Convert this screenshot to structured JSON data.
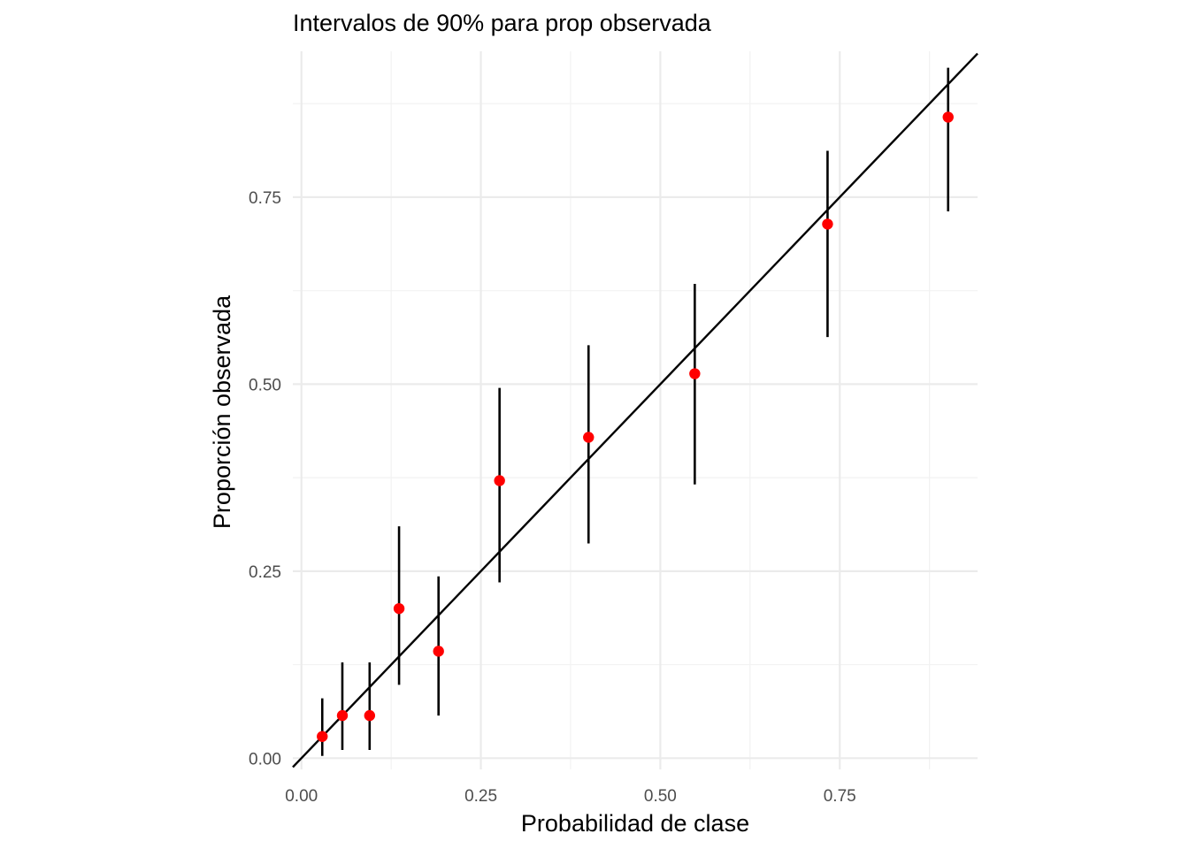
{
  "chart_data": {
    "type": "scatter",
    "title": "Intervalos de 90% para prop observada",
    "xlabel": "Probabilidad de clase",
    "ylabel": "Proporción observada",
    "xlim": [
      -0.012,
      0.942
    ],
    "ylim": [
      -0.015,
      0.945
    ],
    "x_ticks": [
      {
        "value": 0.0,
        "label": "0.00"
      },
      {
        "value": 0.25,
        "label": "0.25"
      },
      {
        "value": 0.5,
        "label": "0.50"
      },
      {
        "value": 0.75,
        "label": "0.75"
      }
    ],
    "y_ticks": [
      {
        "value": 0.0,
        "label": "0.00"
      },
      {
        "value": 0.25,
        "label": "0.25"
      },
      {
        "value": 0.5,
        "label": "0.50"
      },
      {
        "value": 0.75,
        "label": "0.75"
      }
    ],
    "x_minor": [
      0.125,
      0.375,
      0.625,
      0.875
    ],
    "y_minor": [
      0.125,
      0.375,
      0.625,
      0.875
    ],
    "grid": true,
    "reference_line": {
      "intercept": 0,
      "slope": 1
    },
    "point_color": "#ff0000",
    "bar_color": "#000000",
    "points": [
      {
        "x": 0.029,
        "y": 0.029,
        "lower": 0.003,
        "upper": 0.08
      },
      {
        "x": 0.057,
        "y": 0.057,
        "lower": 0.011,
        "upper": 0.128
      },
      {
        "x": 0.095,
        "y": 0.057,
        "lower": 0.011,
        "upper": 0.128
      },
      {
        "x": 0.136,
        "y": 0.2,
        "lower": 0.098,
        "upper": 0.31
      },
      {
        "x": 0.191,
        "y": 0.143,
        "lower": 0.057,
        "upper": 0.243
      },
      {
        "x": 0.276,
        "y": 0.371,
        "lower": 0.235,
        "upper": 0.495
      },
      {
        "x": 0.4,
        "y": 0.429,
        "lower": 0.287,
        "upper": 0.552
      },
      {
        "x": 0.548,
        "y": 0.514,
        "lower": 0.366,
        "upper": 0.634
      },
      {
        "x": 0.733,
        "y": 0.714,
        "lower": 0.563,
        "upper": 0.812
      },
      {
        "x": 0.901,
        "y": 0.857,
        "lower": 0.731,
        "upper": 0.923
      }
    ]
  }
}
